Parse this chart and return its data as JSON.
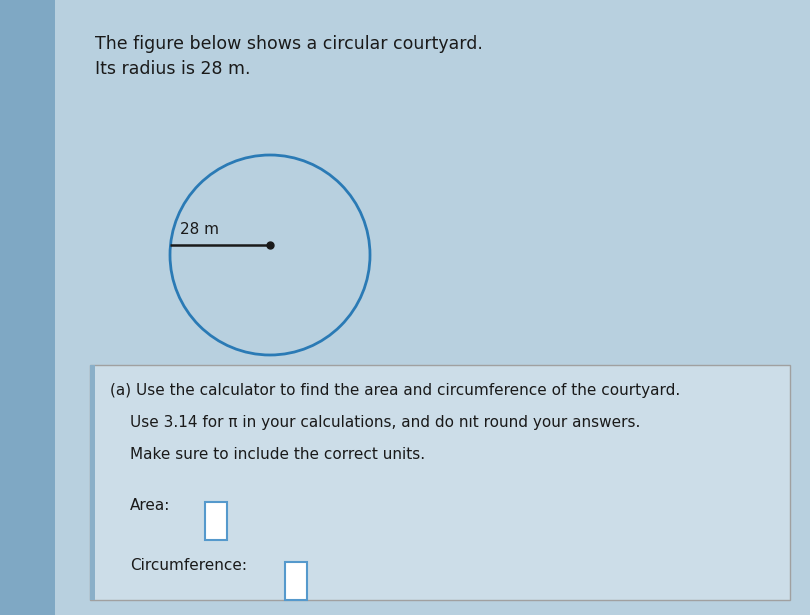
{
  "bg_color": "#7fa8c4",
  "panel_color": "#b8d0df",
  "box_color": "#ccdde8",
  "title_line1": "The figure below shows a circular courtyard.",
  "title_line2": "Its radius is 28 m.",
  "radius_label": "28 m",
  "circle_color": "#2a7ab5",
  "circle_linewidth": 2.0,
  "dot_color": "#1a1a1a",
  "line_color": "#1a1a1a",
  "question_a": "(a) Use the calculator to find the area and circumference of the courtyard.",
  "question_b": "Use 3.14 for π in your calculations, and do nıt round your answers.",
  "question_c": "Make sure to include the correct units.",
  "area_label": "Area:",
  "circ_label": "Circumference:",
  "title_fontsize": 12.5,
  "body_fontsize": 11,
  "small_fontsize": 11,
  "text_color": "#1a1a1a",
  "box_border_color": "#a0a0a0",
  "input_box_color": "#ffffff",
  "left_bar_color": "#8aafc8"
}
